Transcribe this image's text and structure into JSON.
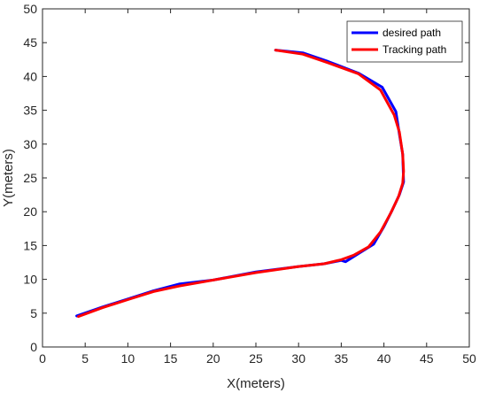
{
  "chart_data": {
    "type": "line",
    "xlabel": "X(meters)",
    "ylabel": "Y(meters)",
    "xlim": [
      0,
      50
    ],
    "ylim": [
      0,
      50
    ],
    "xticks": [
      0,
      5,
      10,
      15,
      20,
      25,
      30,
      35,
      40,
      45,
      50
    ],
    "yticks": [
      0,
      5,
      10,
      15,
      20,
      25,
      30,
      35,
      40,
      45,
      50
    ],
    "grid": false,
    "legend_position": "top-right",
    "series": [
      {
        "name": "desired path",
        "color": "#0000ff",
        "x": [
          4.0,
          7.0,
          10.0,
          13.0,
          16.0,
          20.0,
          25.0,
          30.0,
          33.0,
          35.0,
          35.5,
          37.0,
          38.8,
          40.0,
          41.0,
          41.8,
          42.3,
          42.2,
          41.8,
          41.4,
          39.8,
          37.0,
          33.5,
          30.5,
          27.3
        ],
        "y": [
          4.6,
          5.9,
          7.1,
          8.3,
          9.3,
          9.9,
          11.1,
          11.9,
          12.3,
          12.8,
          12.6,
          13.8,
          15.2,
          17.8,
          20.3,
          22.5,
          24.4,
          28.5,
          31.5,
          34.8,
          38.4,
          40.5,
          42.2,
          43.5,
          43.9
        ]
      },
      {
        "name": "Tracking path",
        "color": "#ff0000",
        "x": [
          4.2,
          7.0,
          10.0,
          13.0,
          16.0,
          20.0,
          25.0,
          30.0,
          33.0,
          35.0,
          36.5,
          38.2,
          39.6,
          40.8,
          41.7,
          42.2,
          42.3,
          42.2,
          41.8,
          41.2,
          39.6,
          37.0,
          33.5,
          30.5,
          27.3
        ],
        "y": [
          4.5,
          5.8,
          7.0,
          8.2,
          9.0,
          9.9,
          11.0,
          11.9,
          12.3,
          12.9,
          13.6,
          14.8,
          17.0,
          19.8,
          22.2,
          24.2,
          26.0,
          28.5,
          31.8,
          34.3,
          38.0,
          40.4,
          42.0,
          43.3,
          43.9
        ]
      }
    ]
  }
}
